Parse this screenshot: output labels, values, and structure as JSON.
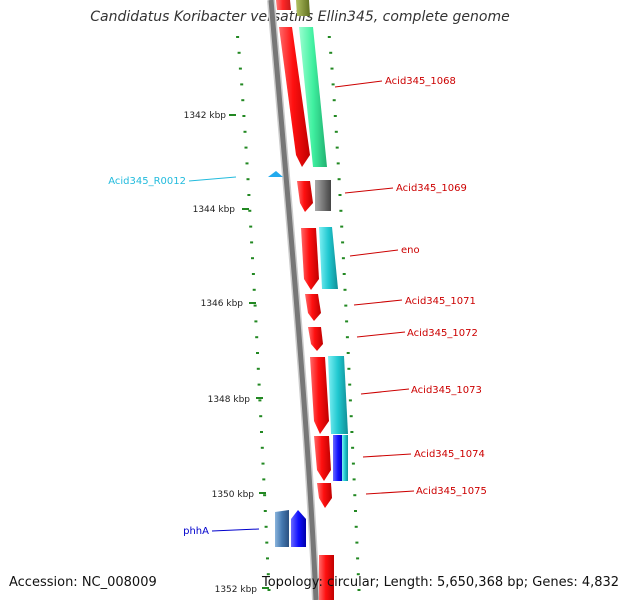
{
  "title": "Candidatus Koribacter versatilis Ellin345, complete genome",
  "accession": "Accession: NC_008009",
  "topology": "Topology: circular; Length: 5,650,368 bp; Genes: 4,832",
  "colors": {
    "forward": "#ff1010",
    "cyan": "#20c8d0",
    "seafoam": "#40f0a0",
    "gray": "#777777",
    "blue": "#1010ff",
    "steel": "#4478b0",
    "label_red": "#cc0000",
    "label_cyan": "#22bbdd",
    "label_blue": "#0000cc",
    "ruler": "#228822"
  },
  "ruler": {
    "labels": [
      {
        "kbp": 1342,
        "text": "1342 kbp"
      },
      {
        "kbp": 1344,
        "text": "1344 kbp"
      },
      {
        "kbp": 1346,
        "text": "1346 kbp"
      },
      {
        "kbp": 1348,
        "text": "1348 kbp"
      },
      {
        "kbp": 1350,
        "text": "1350 kbp"
      },
      {
        "kbp": 1352,
        "text": "1352 kbp"
      }
    ]
  },
  "features": [
    {
      "name": "Acid345_1068",
      "label_color": "label_red"
    },
    {
      "name": "Acid345_1069",
      "label_color": "label_red"
    },
    {
      "name": "eno",
      "label_color": "label_red"
    },
    {
      "name": "Acid345_1071",
      "label_color": "label_red"
    },
    {
      "name": "Acid345_1072",
      "label_color": "label_red"
    },
    {
      "name": "Acid345_1073",
      "label_color": "label_red"
    },
    {
      "name": "Acid345_1074",
      "label_color": "label_red"
    },
    {
      "name": "Acid345_1075",
      "label_color": "label_red"
    },
    {
      "name": "Acid345_R0012",
      "label_color": "label_cyan"
    },
    {
      "name": "phhA",
      "label_color": "label_blue"
    }
  ]
}
